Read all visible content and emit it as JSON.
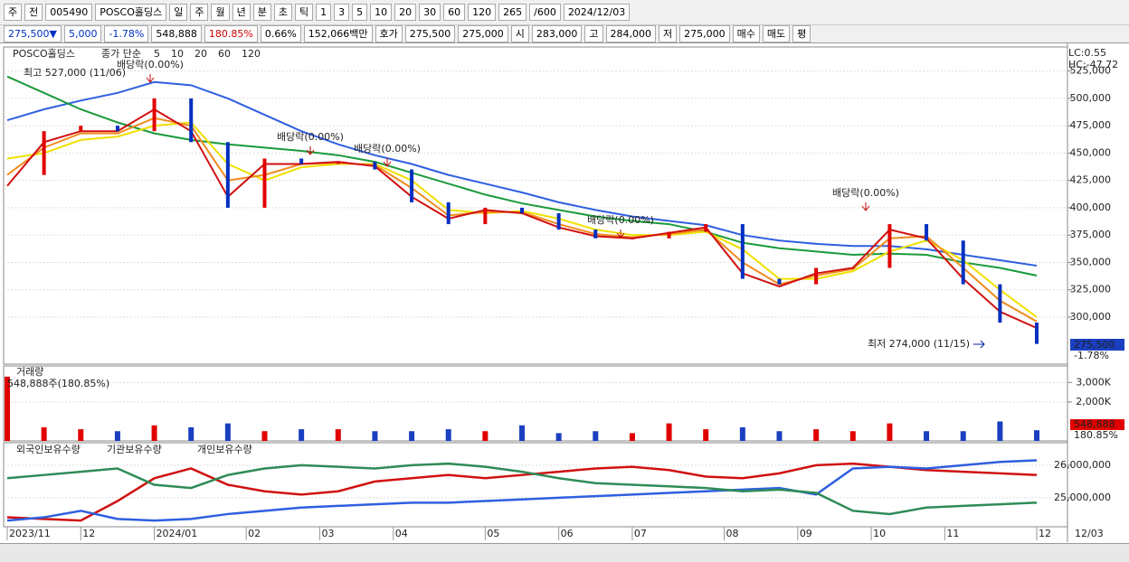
{
  "toolbar": {
    "row1": [
      "주",
      "전",
      "005490",
      "POSCO홀딩스",
      "일",
      "주",
      "월",
      "년",
      "분",
      "초",
      "틱",
      "1",
      "3",
      "5",
      "10",
      "20",
      "30",
      "60",
      "120",
      "265",
      "/600",
      "2024/12/03"
    ],
    "row2": [
      "275,500▼",
      "5,000",
      "-1.78%",
      "548,888",
      "180.85%",
      "0.66%",
      "152,066백만",
      "호가",
      "275,500",
      "275,000",
      "시",
      "283,000",
      "고",
      "284,000",
      "저",
      "275,000",
      "매수",
      "매도",
      "평"
    ]
  },
  "chart_data": [
    {
      "type": "line",
      "title": "POSCO홀딩스",
      "legend_prefix": "종가 단순",
      "xlim": [
        0,
        28
      ],
      "ylim": [
        257000,
        547000
      ],
      "yticks": [
        {
          "value": 300000,
          "label": "300,000"
        },
        {
          "value": 325000,
          "label": "325,000"
        },
        {
          "value": 350000,
          "label": "350,000"
        },
        {
          "value": 375000,
          "label": "375,000"
        },
        {
          "value": 400000,
          "label": "400,000"
        },
        {
          "value": 425000,
          "label": "425,000"
        },
        {
          "value": 450000,
          "label": "450,000"
        },
        {
          "value": 475000,
          "label": "475,000"
        },
        {
          "value": 500000,
          "label": "500,000"
        },
        {
          "value": 525000,
          "label": "525,000"
        }
      ],
      "close": [
        430000,
        470000,
        475000,
        470000,
        500000,
        460000,
        400000,
        445000,
        440000,
        442000,
        435000,
        405000,
        385000,
        400000,
        395000,
        380000,
        372000,
        372000,
        378000,
        385000,
        335000,
        330000,
        345000,
        345000,
        385000,
        370000,
        330000,
        295000,
        275500
      ],
      "up_color": "#e00000",
      "down_color": "#0030c0",
      "series": [
        {
          "name": "5",
          "color": "#d01010",
          "values": [
            420000,
            460000,
            470000,
            470000,
            490000,
            470000,
            410000,
            440000,
            440000,
            442000,
            438000,
            410000,
            390000,
            398000,
            395000,
            382000,
            374000,
            372000,
            377000,
            382000,
            340000,
            328000,
            340000,
            345000,
            380000,
            372000,
            335000,
            305000,
            290000
          ]
        },
        {
          "name": "10",
          "color": "#f08c1e",
          "values": [
            430000,
            455000,
            468000,
            468000,
            482000,
            475000,
            425000,
            430000,
            440000,
            441000,
            439000,
            418000,
            393000,
            396000,
            396000,
            385000,
            376000,
            373000,
            376000,
            380000,
            350000,
            330000,
            338000,
            344000,
            372000,
            374000,
            345000,
            315000,
            296000
          ]
        },
        {
          "name": "20",
          "color": "#f0e000",
          "values": [
            445000,
            450000,
            462000,
            465000,
            475000,
            478000,
            440000,
            425000,
            437000,
            440000,
            440000,
            425000,
            398000,
            395000,
            397000,
            390000,
            380000,
            375000,
            375000,
            378000,
            362000,
            335000,
            335000,
            342000,
            360000,
            370000,
            352000,
            325000,
            300000
          ]
        },
        {
          "name": "60",
          "color": "#1a9a3a",
          "values": [
            520000,
            505000,
            490000,
            478000,
            468000,
            462000,
            458000,
            455000,
            452000,
            448000,
            442000,
            432000,
            422000,
            412000,
            404000,
            398000,
            392000,
            388000,
            385000,
            378000,
            368000,
            363000,
            360000,
            357000,
            358000,
            357000,
            350000,
            345000,
            338000
          ]
        },
        {
          "name": "120",
          "color": "#2f5fe0",
          "values": [
            480000,
            490000,
            498000,
            505000,
            515000,
            512000,
            500000,
            485000,
            470000,
            458000,
            448000,
            440000,
            430000,
            422000,
            414000,
            405000,
            398000,
            392000,
            388000,
            384000,
            375000,
            370000,
            367000,
            365000,
            365000,
            362000,
            357000,
            352000,
            347000
          ]
        }
      ],
      "annotations": [
        {
          "text": "최고 527,000 (11/06)"
        },
        {
          "text": "배당락(0.00%)"
        },
        {
          "text": "배당락(0.00%)"
        },
        {
          "text": "배당락(0.00%)"
        },
        {
          "text": "배당락(0.00%)"
        },
        {
          "text": "배당락(0.00%)"
        },
        {
          "text": "최저 274,000 (11/15)"
        },
        {
          "text": "LC:0.55"
        },
        {
          "text": "HC:-47.72"
        }
      ],
      "last_label": "275,500",
      "change_label": "-1.78%",
      "grid": true
    },
    {
      "type": "bar",
      "title": "거래량",
      "subtitle": "548,888주(180.85%)",
      "xlim": [
        0,
        28
      ],
      "ylim": [
        0,
        3850000
      ],
      "yticks": [
        {
          "value": 2000000,
          "label": "2,000K"
        },
        {
          "value": 3000000,
          "label": "3,000K"
        }
      ],
      "values": [
        3300000,
        700000,
        600000,
        500000,
        800000,
        700000,
        900000,
        500000,
        600000,
        600000,
        500000,
        500000,
        600000,
        500000,
        800000,
        400000,
        500000,
        400000,
        900000,
        600000,
        700000,
        500000,
        600000,
        500000,
        900000,
        500000,
        500000,
        1000000,
        548888
      ],
      "last_label": "548,888",
      "pct_label": "180.85%",
      "grid": true
    },
    {
      "type": "line",
      "xlim": [
        0,
        28
      ],
      "ylim": [
        24110000,
        26690000
      ],
      "yticks": [
        {
          "value": 25000000,
          "label": "25,000,000"
        },
        {
          "value": 26000000,
          "label": "26,000,000"
        }
      ],
      "xticks": [
        {
          "value": 0,
          "label": "2023/11"
        },
        {
          "value": 2,
          "label": "12"
        },
        {
          "value": 4,
          "label": "2024/01"
        },
        {
          "value": 6.5,
          "label": "02"
        },
        {
          "value": 8.5,
          "label": "03"
        },
        {
          "value": 10.5,
          "label": "04"
        },
        {
          "value": 13,
          "label": "05"
        },
        {
          "value": 15,
          "label": "06"
        },
        {
          "value": 17,
          "label": "07"
        },
        {
          "value": 19.5,
          "label": "08"
        },
        {
          "value": 21.5,
          "label": "09"
        },
        {
          "value": 23.5,
          "label": "10"
        },
        {
          "value": 25.5,
          "label": "11"
        },
        {
          "value": 28,
          "label": "12"
        }
      ],
      "end_label": "12/03",
      "grid": true,
      "series": [
        {
          "name": "외국인보유수량",
          "color": "#d01010",
          "values": [
            24400000,
            24350000,
            24300000,
            24900000,
            25600000,
            25900000,
            25400000,
            25200000,
            25100000,
            25200000,
            25500000,
            25600000,
            25700000,
            25600000,
            25700000,
            25800000,
            25900000,
            25950000,
            25850000,
            25650000,
            25600000,
            25750000,
            26000000,
            26050000,
            25950000,
            25850000,
            25800000,
            25750000,
            25700000
          ]
        },
        {
          "name": "기관보유수량",
          "color": "#2f5fe0",
          "values": [
            24300000,
            24400000,
            24600000,
            24350000,
            24300000,
            24350000,
            24500000,
            24600000,
            24700000,
            24750000,
            24800000,
            24850000,
            24850000,
            24900000,
            24950000,
            25000000,
            25050000,
            25100000,
            25150000,
            25200000,
            25250000,
            25300000,
            25100000,
            25900000,
            25950000,
            25900000,
            26000000,
            26100000,
            26150000
          ]
        },
        {
          "name": "개인보유수량",
          "color": "#2e8b57",
          "values": [
            25600000,
            25700000,
            25800000,
            25900000,
            25400000,
            25300000,
            25700000,
            25900000,
            26000000,
            25950000,
            25900000,
            26000000,
            26050000,
            25950000,
            25800000,
            25600000,
            25450000,
            25400000,
            25350000,
            25300000,
            25200000,
            25250000,
            25150000,
            24600000,
            24500000,
            24700000,
            24750000,
            24800000,
            24850000
          ]
        }
      ]
    }
  ]
}
